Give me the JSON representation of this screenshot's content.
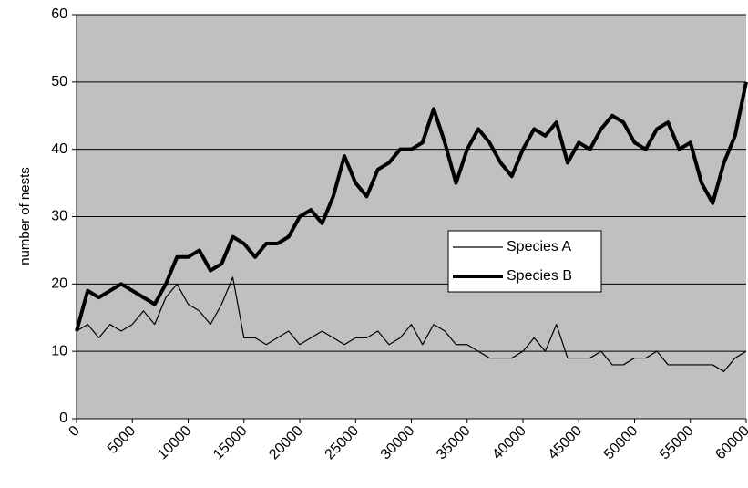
{
  "chart_data": {
    "type": "line",
    "ylabel": "number of nests",
    "x": [
      0,
      1000,
      2000,
      3000,
      4000,
      5000,
      6000,
      7000,
      8000,
      9000,
      10000,
      11000,
      12000,
      13000,
      14000,
      15000,
      16000,
      17000,
      18000,
      19000,
      20000,
      21000,
      22000,
      23000,
      24000,
      25000,
      26000,
      27000,
      28000,
      29000,
      30000,
      31000,
      32000,
      33000,
      34000,
      35000,
      36000,
      37000,
      38000,
      39000,
      40000,
      41000,
      42000,
      43000,
      44000,
      45000,
      46000,
      47000,
      48000,
      49000,
      50000,
      51000,
      52000,
      53000,
      54000,
      55000,
      56000,
      57000,
      58000,
      59000,
      60000
    ],
    "series": [
      {
        "name": "Species A",
        "color": "#000000",
        "width": 1.2,
        "values": [
          13,
          14,
          12,
          14,
          13,
          14,
          16,
          14,
          18,
          20,
          17,
          16,
          14,
          17,
          21,
          12,
          12,
          11,
          12,
          13,
          11,
          12,
          13,
          12,
          11,
          12,
          12,
          13,
          11,
          12,
          14,
          11,
          14,
          13,
          11,
          11,
          10,
          9,
          9,
          9,
          10,
          12,
          10,
          14,
          9,
          9,
          9,
          10,
          8,
          8,
          9,
          9,
          10,
          8,
          8,
          8,
          8,
          8,
          7,
          9,
          10
        ]
      },
      {
        "name": "Species B",
        "color": "#000000",
        "width": 4,
        "values": [
          13,
          19,
          18,
          19,
          20,
          19,
          18,
          17,
          20,
          24,
          24,
          25,
          22,
          23,
          27,
          26,
          24,
          26,
          26,
          27,
          30,
          31,
          29,
          33,
          39,
          35,
          33,
          37,
          38,
          40,
          40,
          41,
          46,
          41,
          35,
          40,
          43,
          41,
          38,
          36,
          40,
          43,
          42,
          44,
          38,
          41,
          40,
          43,
          45,
          44,
          41,
          40,
          43,
          44,
          40,
          41,
          35,
          32,
          38,
          42,
          50
        ]
      }
    ],
    "xlim": [
      0,
      60000
    ],
    "xticks": [
      0,
      5000,
      10000,
      15000,
      20000,
      25000,
      30000,
      35000,
      40000,
      45000,
      50000,
      55000,
      60000
    ],
    "ylim": [
      0,
      60
    ],
    "yticks": [
      0,
      10,
      20,
      30,
      40,
      50,
      60
    ],
    "grid": true
  }
}
